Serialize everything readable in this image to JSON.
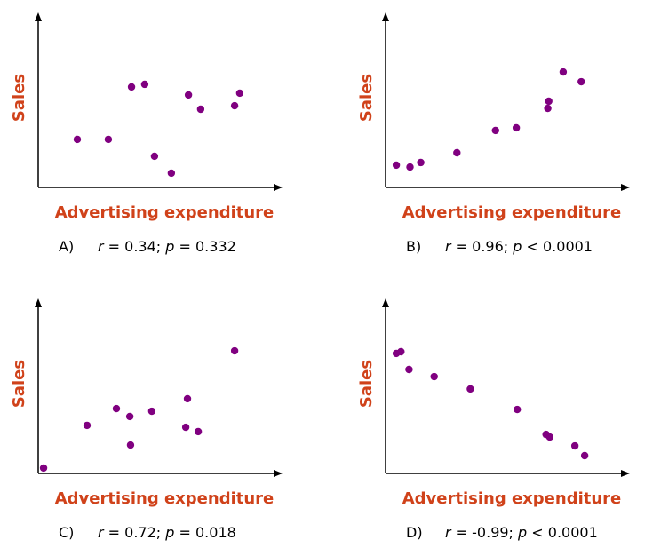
{
  "colors": {
    "point": "#800080",
    "axis_label": "#d0421a",
    "axis": "#000000"
  },
  "chart_data": [
    {
      "type": "scatter",
      "panel": "A)",
      "xlabel": "Advertising expenditure",
      "ylabel": "Sales",
      "stat_r": "0.34",
      "stat_p_op": "=",
      "stat_p": "0.332",
      "xlim": [
        0,
        100
      ],
      "ylim": [
        0,
        100
      ],
      "grid": false,
      "x": [
        16,
        28.7,
        38.2,
        43.6,
        47.6,
        54.5,
        61.5,
        66.5,
        80.4,
        82.5
      ],
      "y": [
        27.6,
        27.6,
        57.7,
        59.2,
        17.9,
        8.2,
        53.1,
        44.9,
        46.9,
        54.1
      ]
    },
    {
      "type": "scatter",
      "panel": "B)",
      "xlabel": "Advertising expenditure",
      "ylabel": "Sales",
      "stat_r": "0.96",
      "stat_p_op": "<",
      "stat_p": "0.0001",
      "xlim": [
        0,
        100
      ],
      "ylim": [
        0,
        100
      ],
      "grid": false,
      "x": [
        4.4,
        10,
        14.4,
        29.2,
        45,
        53.5,
        66.4,
        66.8,
        72.7,
        80.1
      ],
      "y": [
        12.8,
        11.7,
        14.3,
        19.9,
        32.7,
        34.2,
        45.4,
        49.5,
        66.3,
        60.7
      ]
    },
    {
      "type": "scatter",
      "panel": "C)",
      "xlabel": "Advertising expenditure",
      "ylabel": "Sales",
      "stat_r": "0.72",
      "stat_p_op": "=",
      "stat_p": "0.018",
      "xlim": [
        0,
        100
      ],
      "ylim": [
        0,
        100
      ],
      "grid": false,
      "x": [
        2.2,
        20,
        32,
        37.5,
        37.8,
        46.5,
        60.4,
        61.1,
        65.5,
        80.4
      ],
      "y": [
        3.1,
        27.6,
        37.2,
        32.7,
        16.3,
        35.7,
        26.5,
        42.9,
        24,
        70.4
      ]
    },
    {
      "type": "scatter",
      "panel": "D)",
      "xlabel": "Advertising expenditure",
      "ylabel": "Sales",
      "stat_r": "-0.99",
      "stat_p_op": "<",
      "stat_p": "0.0001",
      "xlim": [
        0,
        100
      ],
      "ylim": [
        0,
        100
      ],
      "grid": false,
      "x": [
        4.4,
        6.3,
        9.6,
        19.9,
        34.7,
        53.9,
        65.7,
        67.2,
        77.5,
        81.5
      ],
      "y": [
        68.9,
        69.9,
        59.7,
        55.6,
        48.5,
        36.7,
        22.4,
        20.9,
        15.8,
        10.2
      ]
    }
  ]
}
